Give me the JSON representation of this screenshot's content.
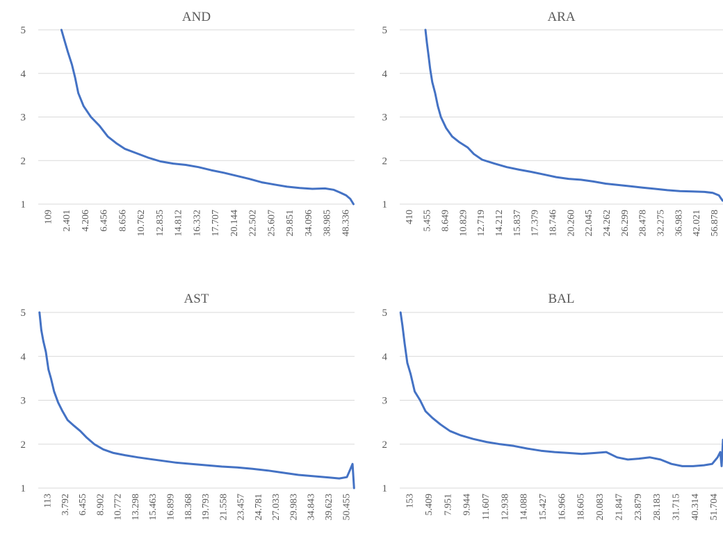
{
  "chart_data": [
    {
      "type": "line",
      "title": "AND",
      "ylim": [
        1,
        5
      ],
      "yticks": [
        "1",
        "2",
        "3",
        "4",
        "5"
      ],
      "grid": true,
      "x_tick_labels": [
        "109",
        "2.401",
        "4.206",
        "6.456",
        "8.656",
        "10.762",
        "12.835",
        "14.812",
        "16.332",
        "17.707",
        "20.144",
        "22.502",
        "25.607",
        "29.851",
        "34.096",
        "38.985",
        "48.336"
      ],
      "series": [
        {
          "values": [
            [
              0.11,
              5.0
            ],
            [
              0.125,
              4.75
            ],
            [
              0.14,
              4.5
            ],
            [
              0.16,
              4.2
            ],
            [
              0.175,
              3.9
            ],
            [
              0.19,
              3.55
            ],
            [
              0.215,
              3.25
            ],
            [
              0.25,
              3.0
            ],
            [
              0.29,
              2.8
            ],
            [
              0.33,
              2.55
            ],
            [
              0.37,
              2.4
            ],
            [
              0.41,
              2.27
            ],
            [
              0.46,
              2.18
            ],
            [
              0.52,
              2.07
            ],
            [
              0.58,
              1.98
            ],
            [
              0.64,
              1.93
            ],
            [
              0.7,
              1.9
            ],
            [
              0.76,
              1.85
            ],
            [
              0.82,
              1.78
            ],
            [
              0.88,
              1.72
            ],
            [
              0.94,
              1.65
            ],
            [
              1.0,
              1.58
            ],
            [
              1.06,
              1.5
            ],
            [
              1.12,
              1.45
            ],
            [
              1.18,
              1.4
            ],
            [
              1.24,
              1.37
            ],
            [
              1.3,
              1.35
            ],
            [
              1.36,
              1.36
            ],
            [
              1.4,
              1.33
            ],
            [
              1.43,
              1.27
            ],
            [
              1.46,
              1.2
            ],
            [
              1.48,
              1.12
            ],
            [
              1.495,
              1.0
            ]
          ]
        }
      ]
    },
    {
      "type": "line",
      "title": "ARA",
      "ylim": [
        1,
        5
      ],
      "yticks": [
        "1",
        "2",
        "3",
        "4",
        "5"
      ],
      "grid": true,
      "x_tick_labels": [
        "410",
        "5.455",
        "8.649",
        "10.829",
        "12.719",
        "14.212",
        "15.837",
        "17.379",
        "18.746",
        "20.260",
        "22.045",
        "24.262",
        "26.299",
        "28.478",
        "32.275",
        "36.983",
        "42.021",
        "56.878"
      ],
      "series": [
        {
          "values": [
            [
              0.125,
              5.0
            ],
            [
              0.132,
              4.7
            ],
            [
              0.14,
              4.4
            ],
            [
              0.148,
              4.1
            ],
            [
              0.158,
              3.8
            ],
            [
              0.172,
              3.55
            ],
            [
              0.185,
              3.25
            ],
            [
              0.2,
              3.0
            ],
            [
              0.225,
              2.75
            ],
            [
              0.255,
              2.55
            ],
            [
              0.29,
              2.42
            ],
            [
              0.33,
              2.3
            ],
            [
              0.36,
              2.15
            ],
            [
              0.4,
              2.02
            ],
            [
              0.46,
              1.93
            ],
            [
              0.52,
              1.85
            ],
            [
              0.58,
              1.79
            ],
            [
              0.64,
              1.74
            ],
            [
              0.7,
              1.68
            ],
            [
              0.76,
              1.62
            ],
            [
              0.82,
              1.58
            ],
            [
              0.88,
              1.56
            ],
            [
              0.94,
              1.52
            ],
            [
              1.0,
              1.47
            ],
            [
              1.06,
              1.44
            ],
            [
              1.12,
              1.41
            ],
            [
              1.18,
              1.38
            ],
            [
              1.24,
              1.35
            ],
            [
              1.3,
              1.32
            ],
            [
              1.36,
              1.3
            ],
            [
              1.42,
              1.29
            ],
            [
              1.48,
              1.28
            ],
            [
              1.52,
              1.26
            ],
            [
              1.55,
              1.2
            ],
            [
              1.568,
              1.08
            ]
          ]
        }
      ]
    },
    {
      "type": "line",
      "title": "AST",
      "ylim": [
        1,
        5
      ],
      "yticks": [
        "1",
        "2",
        "3",
        "4",
        "5"
      ],
      "grid": true,
      "x_tick_labels": [
        "113",
        "3.792",
        "6.455",
        "8.902",
        "10.772",
        "13.298",
        "15.463",
        "16.899",
        "18.368",
        "19.793",
        "21.558",
        "23.457",
        "24.781",
        "27.033",
        "29.983",
        "34.843",
        "39.623",
        "50.455"
      ],
      "series": [
        {
          "values": [
            [
              0.005,
              5.0
            ],
            [
              0.012,
              4.6
            ],
            [
              0.02,
              4.35
            ],
            [
              0.03,
              4.1
            ],
            [
              0.04,
              3.7
            ],
            [
              0.05,
              3.5
            ],
            [
              0.062,
              3.2
            ],
            [
              0.078,
              2.95
            ],
            [
              0.095,
              2.75
            ],
            [
              0.115,
              2.55
            ],
            [
              0.14,
              2.42
            ],
            [
              0.165,
              2.3
            ],
            [
              0.19,
              2.15
            ],
            [
              0.22,
              2.0
            ],
            [
              0.255,
              1.88
            ],
            [
              0.295,
              1.8
            ],
            [
              0.34,
              1.75
            ],
            [
              0.39,
              1.7
            ],
            [
              0.44,
              1.66
            ],
            [
              0.49,
              1.62
            ],
            [
              0.54,
              1.58
            ],
            [
              0.6,
              1.55
            ],
            [
              0.66,
              1.52
            ],
            [
              0.72,
              1.49
            ],
            [
              0.78,
              1.47
            ],
            [
              0.84,
              1.44
            ],
            [
              0.9,
              1.4
            ],
            [
              0.96,
              1.35
            ],
            [
              1.02,
              1.3
            ],
            [
              1.08,
              1.27
            ],
            [
              1.14,
              1.24
            ],
            [
              1.18,
              1.22
            ],
            [
              1.21,
              1.25
            ],
            [
              1.225,
              1.45
            ],
            [
              1.232,
              1.55
            ],
            [
              1.238,
              1.0
            ]
          ]
        }
      ]
    },
    {
      "type": "line",
      "title": "BAL",
      "ylim": [
        1,
        5
      ],
      "yticks": [
        "1",
        "2",
        "3",
        "4",
        "5"
      ],
      "grid": true,
      "x_tick_labels": [
        "153",
        "5.409",
        "7.951",
        "9.944",
        "11.607",
        "12.938",
        "14.088",
        "15.427",
        "16.966",
        "18.605",
        "20.083",
        "21.847",
        "23.879",
        "28.183",
        "31.715",
        "40.314",
        "51.704"
      ],
      "series": [
        {
          "values": [
            [
              0.003,
              5.0
            ],
            [
              0.01,
              4.7
            ],
            [
              0.018,
              4.3
            ],
            [
              0.028,
              3.85
            ],
            [
              0.04,
              3.6
            ],
            [
              0.055,
              3.2
            ],
            [
              0.075,
              3.0
            ],
            [
              0.095,
              2.75
            ],
            [
              0.12,
              2.6
            ],
            [
              0.15,
              2.45
            ],
            [
              0.185,
              2.3
            ],
            [
              0.225,
              2.2
            ],
            [
              0.27,
              2.12
            ],
            [
              0.32,
              2.05
            ],
            [
              0.37,
              2.0
            ],
            [
              0.42,
              1.96
            ],
            [
              0.47,
              1.9
            ],
            [
              0.52,
              1.85
            ],
            [
              0.57,
              1.82
            ],
            [
              0.62,
              1.8
            ],
            [
              0.67,
              1.78
            ],
            [
              0.72,
              1.8
            ],
            [
              0.76,
              1.82
            ],
            [
              0.8,
              1.7
            ],
            [
              0.84,
              1.65
            ],
            [
              0.88,
              1.67
            ],
            [
              0.92,
              1.7
            ],
            [
              0.96,
              1.65
            ],
            [
              1.0,
              1.55
            ],
            [
              1.04,
              1.5
            ],
            [
              1.08,
              1.5
            ],
            [
              1.12,
              1.52
            ],
            [
              1.15,
              1.55
            ],
            [
              1.17,
              1.7
            ],
            [
              1.18,
              1.82
            ],
            [
              1.185,
              1.5
            ],
            [
              1.19,
              2.1
            ]
          ]
        }
      ]
    }
  ]
}
